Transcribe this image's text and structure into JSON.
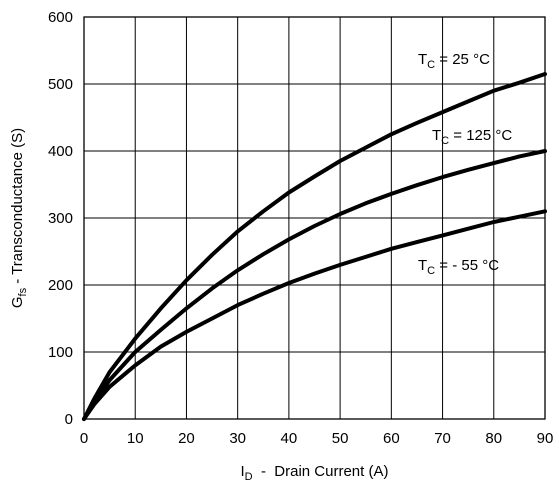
{
  "chart_data": {
    "type": "line",
    "xlabel": {
      "main": "I",
      "sub": "D",
      "rest": "  -  Drain Current (A)"
    },
    "ylabel": {
      "main": "G",
      "sub": "fs",
      "rest": " - Transconductance (S)"
    },
    "xlim": [
      0,
      90
    ],
    "ylim": [
      0,
      600
    ],
    "x_ticks": [
      0,
      10,
      20,
      30,
      40,
      50,
      60,
      70,
      80,
      90
    ],
    "y_ticks": [
      0,
      100,
      200,
      300,
      400,
      500,
      600
    ],
    "grid": true,
    "series": [
      {
        "name": "T_C = 25 °C",
        "label": {
          "main": "T",
          "sub": "C",
          "rest": " = 25 °C"
        },
        "x": [
          0,
          2,
          5,
          10,
          15,
          20,
          25,
          30,
          35,
          40,
          45,
          50,
          55,
          60,
          65,
          70,
          75,
          80,
          85,
          90
        ],
        "y": [
          0,
          30,
          70,
          120,
          165,
          207,
          245,
          280,
          310,
          338,
          362,
          385,
          405,
          425,
          442,
          458,
          474,
          490,
          502,
          515
        ]
      },
      {
        "name": "T_C = 125 °C",
        "label": {
          "main": "T",
          "sub": "C",
          "rest": " = 125 °C"
        },
        "x": [
          0,
          2,
          5,
          10,
          15,
          20,
          25,
          30,
          35,
          40,
          45,
          50,
          55,
          60,
          65,
          70,
          75,
          80,
          85,
          90
        ],
        "y": [
          0,
          25,
          58,
          100,
          133,
          165,
          195,
          222,
          246,
          268,
          288,
          306,
          322,
          336,
          349,
          361,
          372,
          382,
          392,
          400
        ]
      },
      {
        "name": "T_C = - 55 °C",
        "label": {
          "main": "T",
          "sub": "C",
          "rest": " = - 55 °C"
        },
        "x": [
          0,
          2,
          5,
          10,
          15,
          20,
          25,
          30,
          35,
          40,
          45,
          50,
          55,
          60,
          65,
          70,
          75,
          80,
          85,
          90
        ],
        "y": [
          0,
          22,
          48,
          80,
          108,
          130,
          150,
          170,
          187,
          203,
          217,
          230,
          242,
          254,
          264,
          274,
          284,
          294,
          302,
          310
        ]
      }
    ]
  }
}
